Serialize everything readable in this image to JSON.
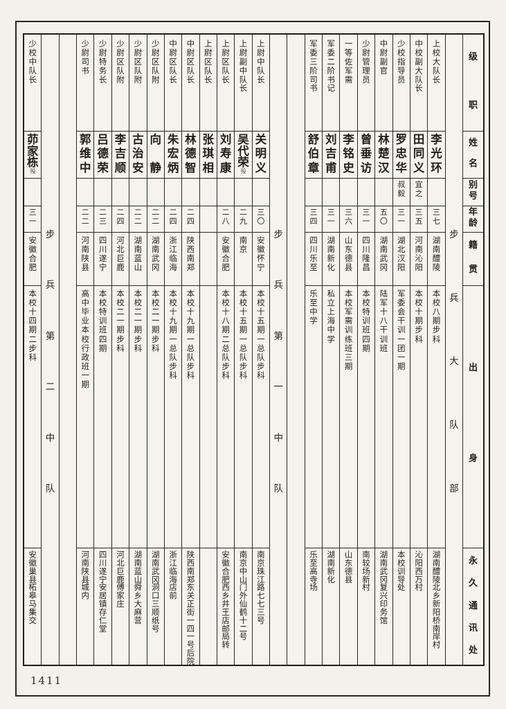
{
  "page_number": "1411",
  "colors": {
    "paper": "#f3f1ec",
    "ink": "#221f1a",
    "line": "#2b271f"
  },
  "headers": {
    "rank": "级职",
    "name": "姓名",
    "alias": "别号",
    "age": "年龄",
    "native": "籍贯",
    "origin": "出身",
    "address": "永久通讯处"
  },
  "sections": [
    {
      "label": "步兵大队部",
      "members": [
        {
          "rank": "上校大队长",
          "name": "李光环",
          "alias": "",
          "age": "三七",
          "native": "湖南醴陵",
          "origin": "本校八期步科",
          "address": "湖南醴陵北乡新阳桥南岸村"
        },
        {
          "rank": "中校副大队长",
          "name": "田同义",
          "alias": "宜之",
          "age": "三五",
          "native": "河南沁阳",
          "origin": "本校十期步科",
          "address": "沁阳西万村"
        },
        {
          "rank": "少校指导员",
          "name": "罗忠华",
          "alias": "叔毅",
          "age": "三一",
          "native": "湖北汉阳",
          "origin": "军委会干训一团一期",
          "address": "本校训导处"
        },
        {
          "rank": "中尉副官",
          "name": "林楚汉",
          "alias": "",
          "age": "五〇",
          "native": "湖南武冈",
          "origin": "陆军十八干训班",
          "address": "湖南武冈复兴印务馆"
        },
        {
          "rank": "少尉管理员",
          "name": "曾垂访",
          "alias": "",
          "age": "三一",
          "native": "四川隆昌",
          "origin": "本校特训班四期",
          "address": "南较场新村"
        },
        {
          "rank": "一等佐军需",
          "name": "李铭史",
          "alias": "",
          "age": "三六",
          "native": "山东德县",
          "origin": "本校军需训练班三期",
          "address": "山东德县"
        },
        {
          "rank": "军委二阶书记",
          "name": "刘吉甫",
          "alias": "",
          "age": "三一",
          "native": "湖南新化",
          "origin": "私立上海中学",
          "address": "湖南新化"
        },
        {
          "rank": "军委三阶司书",
          "name": "舒伯章",
          "alias": "",
          "age": "三四",
          "native": "四川乐至",
          "origin": "乐至中学",
          "address": "乐至高寺场"
        }
      ]
    },
    {
      "label": "步兵第一中队",
      "members": [
        {
          "rank": "上尉中队长",
          "name": "关明义",
          "alias": "",
          "age": "三〇",
          "native": "安徽怀宁",
          "origin": "本校十五期一总队步科",
          "address": "南京珠江路七七三号"
        },
        {
          "rank": "上尉副中队长",
          "name": "吴代荣",
          "note": "殁",
          "alias": "",
          "age": "二九",
          "native": "南京",
          "origin": "本校十五期一总队步科",
          "address": "南京中山门外仙鹤十二号"
        },
        {
          "rank": "上尉区队长",
          "name": "刘寿康",
          "alias": "",
          "age": "二八",
          "native": "安徽合肥",
          "origin": "本校十八期二总队步科",
          "address": "安徽合肥西乡井王店邮局转"
        },
        {
          "rank": "上尉区队长",
          "name": "张琪相",
          "alias": "",
          "age": "",
          "native": "",
          "origin": "",
          "address": ""
        },
        {
          "rank": "中尉区队长",
          "name": "林德智",
          "alias": "",
          "age": "二四",
          "native": "陕西南郑",
          "origin": "本校十九期一总队步科",
          "address": "陕西南郑东关正街一四一号后院"
        },
        {
          "rank": "中尉区队长",
          "name": "朱宏炳",
          "alias": "",
          "age": "二四",
          "native": "浙江临海",
          "origin": "本校十九期一总队步科",
          "address": "浙江临海店前"
        },
        {
          "rank": "少尉区队附",
          "name": "向静",
          "alias": "",
          "age": "二二",
          "native": "湖南武冈",
          "origin": "本校二一期步科",
          "address": "湖南武冈洞口三顺纸号"
        },
        {
          "rank": "少尉区队附",
          "name": "古治安",
          "alias": "",
          "age": "二二",
          "native": "湖南蓝山",
          "origin": "本校二一期步科",
          "address": "湖南蓝山舜乡大麻营"
        },
        {
          "rank": "少尉区队附",
          "name": "李吉顺",
          "alias": "",
          "age": "二四",
          "native": "河北巨鹿",
          "origin": "本校二一期步科",
          "address": "河北巨鹿傅家庄"
        },
        {
          "rank": "少尉特务长",
          "name": "吕德荣",
          "alias": "",
          "age": "二三",
          "native": "四川遂宁",
          "origin": "本校特训班四期",
          "address": "四川遂宁安居镇存仁堂"
        },
        {
          "rank": "少尉司书",
          "name": "郭维中",
          "alias": "",
          "age": "二二",
          "native": "河南陕县",
          "origin": "高中毕业本校行政班一期",
          "address": "河南陕县城内"
        }
      ]
    },
    {
      "label": "步兵第二中队",
      "members": [
        {
          "rank": "少校中队长",
          "name": "茆家栋",
          "note": "殁",
          "alias": "",
          "age": "三一",
          "native": "安徽合肥",
          "origin": "本校十四期二步科",
          "address": "安徽巢县柘皋马集交"
        }
      ]
    }
  ]
}
